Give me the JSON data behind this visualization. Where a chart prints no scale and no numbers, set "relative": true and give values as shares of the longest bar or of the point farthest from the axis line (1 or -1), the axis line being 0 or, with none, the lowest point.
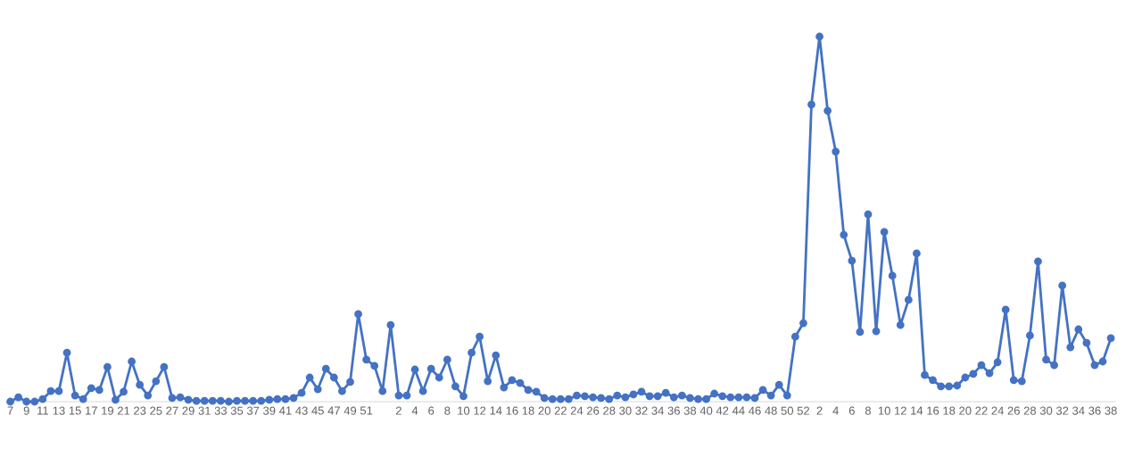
{
  "chart_data": {
    "type": "line",
    "relative": true,
    "marker": "circle",
    "line_style": "solid",
    "categories": [
      "7",
      null,
      "9",
      null,
      "11",
      null,
      "13",
      null,
      "15",
      null,
      "17",
      null,
      "19",
      null,
      "21",
      null,
      "23",
      null,
      "25",
      null,
      "27",
      null,
      "29",
      null,
      "31",
      null,
      "33",
      null,
      "35",
      null,
      "37",
      null,
      "39",
      null,
      "41",
      null,
      "43",
      null,
      "45",
      null,
      "47",
      null,
      "49",
      null,
      "51",
      null,
      null,
      null,
      "2",
      null,
      "4",
      null,
      "6",
      null,
      "8",
      null,
      "10",
      null,
      "12",
      null,
      "14",
      null,
      "16",
      null,
      "18",
      null,
      "20",
      null,
      "22",
      null,
      "24",
      null,
      "26",
      null,
      "28",
      null,
      "30",
      null,
      "32",
      null,
      "34",
      null,
      "36",
      null,
      "38",
      null,
      "40",
      null,
      "42",
      null,
      "44",
      null,
      "46",
      null,
      "48",
      null,
      "50",
      null,
      "52",
      null,
      "2",
      null,
      "4",
      null,
      "6",
      null,
      "8",
      null,
      "10",
      null,
      "12",
      null,
      "14",
      null,
      "16",
      null,
      "18",
      null,
      "20",
      null,
      "22",
      null,
      "24",
      null,
      "26",
      null,
      "28",
      null,
      "30",
      null,
      "32",
      null,
      "34",
      null,
      "36",
      null,
      "38"
    ],
    "series": [
      {
        "color": "#4472c4",
        "values": [
          0,
          0.012,
          0,
          0,
          0.007,
          0.029,
          0.029,
          0.134,
          0.017,
          0.007,
          0.037,
          0.032,
          0.095,
          0.005,
          0.027,
          0.11,
          0.046,
          0.017,
          0.056,
          0.095,
          0.01,
          0.012,
          0.005,
          0.002,
          0.002,
          0.002,
          0.002,
          0,
          0.002,
          0.002,
          0.002,
          0.002,
          0.005,
          0.007,
          0.007,
          0.01,
          0.024,
          0.066,
          0.034,
          0.09,
          0.066,
          0.029,
          0.054,
          0.24,
          0.115,
          0.098,
          0.029,
          0.21,
          0.017,
          0.017,
          0.088,
          0.029,
          0.09,
          0.066,
          0.115,
          0.042,
          0.015,
          0.134,
          0.178,
          0.056,
          0.127,
          0.039,
          0.059,
          0.051,
          0.032,
          0.027,
          0.01,
          0.007,
          0.007,
          0.007,
          0.017,
          0.015,
          0.012,
          0.01,
          0.007,
          0.017,
          0.012,
          0.02,
          0.027,
          0.015,
          0.015,
          0.024,
          0.012,
          0.017,
          0.01,
          0.007,
          0.007,
          0.022,
          0.015,
          0.012,
          0.012,
          0.012,
          0.01,
          0.032,
          0.017,
          0.046,
          0.017,
          0.178,
          0.215,
          0.814,
          1,
          0.797,
          0.685,
          0.457,
          0.386,
          0.191,
          0.513,
          0.193,
          0.465,
          0.345,
          0.21,
          0.279,
          0.406,
          0.073,
          0.059,
          0.042,
          0.042,
          0.044,
          0.066,
          0.076,
          0.1,
          0.078,
          0.108,
          0.252,
          0.059,
          0.056,
          0.181,
          0.384,
          0.115,
          0.1,
          0.318,
          0.149,
          0.198,
          0.161,
          0.1,
          0.11,
          0.174
        ]
      }
    ]
  }
}
